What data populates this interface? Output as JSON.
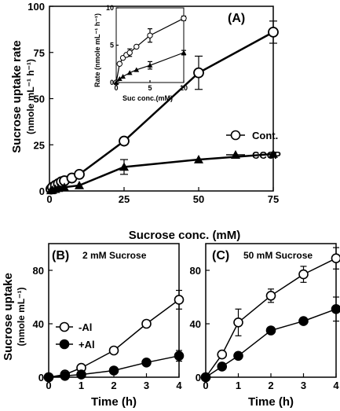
{
  "chart_data": [
    {
      "id": "A",
      "type": "line",
      "panel_label": "(A)",
      "xlabel": "Sucrose conc. (mM)",
      "ylabel": "Sucrose uptake rate",
      "ylabel_unit": "(nmole mL⁻¹ h⁻¹)",
      "xlim": [
        0,
        75
      ],
      "ylim": [
        0,
        100
      ],
      "xticks": [
        0,
        25,
        50,
        75
      ],
      "yticks": [
        0,
        25,
        50,
        75,
        100
      ],
      "legend_position": "right",
      "series": [
        {
          "name": "Cont.",
          "marker": "open-circle",
          "x": [
            0.5,
            1,
            2,
            3,
            4,
            5,
            7.5,
            10,
            25,
            50,
            75
          ],
          "y": [
            1.0,
            2.0,
            3.0,
            4.0,
            5.0,
            5.5,
            7.0,
            9.0,
            27.0,
            64.0,
            86.0
          ],
          "err": [
            0,
            0,
            0,
            0,
            0,
            0,
            0,
            0,
            0,
            9,
            6
          ]
        },
        {
          "name": "CCCP",
          "marker": "filled-triangle",
          "x": [
            0.5,
            1,
            2,
            3,
            5,
            10,
            25,
            50,
            75
          ],
          "y": [
            0.3,
            0.5,
            1.0,
            1.5,
            2.0,
            3.0,
            13.0,
            17.0,
            20.0
          ],
          "err": [
            0,
            0,
            0,
            0,
            0,
            0,
            4,
            0,
            0
          ]
        }
      ]
    },
    {
      "id": "A-inset",
      "type": "line",
      "xlabel": "Suc conc.(mM)",
      "ylabel": "Rate (nmole mL⁻¹ h⁻¹)",
      "xlim": [
        0,
        10
      ],
      "ylim": [
        0,
        10
      ],
      "xticks": [
        0,
        5,
        10
      ],
      "yticks": [
        0,
        5,
        10
      ],
      "series": [
        {
          "name": "Cont.",
          "marker": "open-circle",
          "x": [
            0,
            0.5,
            1,
            1.5,
            2,
            3,
            5,
            10
          ],
          "y": [
            0,
            2.5,
            3.3,
            3.7,
            4.0,
            4.8,
            6.3,
            8.6
          ],
          "err": [
            0,
            0,
            0,
            0,
            0.5,
            0,
            0.9,
            0.3
          ]
        },
        {
          "name": "CCCP",
          "marker": "filled-triangle",
          "x": [
            0,
            0.5,
            1,
            2,
            3,
            5,
            10
          ],
          "y": [
            0,
            0.5,
            0.8,
            1.3,
            1.7,
            2.3,
            4.0
          ],
          "err": [
            0,
            0,
            0,
            0,
            0,
            0.5,
            0.3
          ]
        }
      ]
    },
    {
      "id": "B",
      "type": "line",
      "panel_label": "(B)",
      "title": "2 mM Sucrose",
      "xlabel": "Time (h)",
      "ylabel": "Sucrose uptake",
      "ylabel_unit": "(nmole mL⁻¹)",
      "xlim": [
        0,
        4
      ],
      "ylim": [
        0,
        100
      ],
      "xticks": [
        0,
        1,
        2,
        3,
        4
      ],
      "yticks": [
        0,
        40,
        80
      ],
      "legend_position": "left",
      "series": [
        {
          "name": "-Al",
          "marker": "open-circle",
          "x": [
            0,
            0.5,
            1,
            2,
            3,
            4
          ],
          "y": [
            0,
            2,
            7,
            20,
            40,
            58
          ],
          "err": [
            0,
            0,
            0,
            0,
            0,
            7
          ]
        },
        {
          "name": "+Al",
          "marker": "filled-circle",
          "x": [
            0,
            0.5,
            1,
            2,
            3,
            4
          ],
          "y": [
            0,
            1,
            2,
            5,
            11,
            16
          ],
          "err": [
            0,
            0,
            0,
            0,
            0,
            4
          ]
        }
      ]
    },
    {
      "id": "C",
      "type": "line",
      "panel_label": "(C)",
      "title": "50 mM Sucrose",
      "xlabel": "Time (h)",
      "xlim": [
        0,
        4
      ],
      "ylim": [
        0,
        100
      ],
      "xticks": [
        0,
        1,
        2,
        3,
        4
      ],
      "yticks": [
        0,
        40,
        80
      ],
      "series": [
        {
          "name": "-Al",
          "marker": "open-circle",
          "x": [
            0,
            0.5,
            1,
            2,
            3,
            4
          ],
          "y": [
            0,
            17,
            41,
            61,
            77,
            89
          ],
          "err": [
            0,
            0,
            10,
            5,
            6,
            8
          ]
        },
        {
          "name": "+Al",
          "marker": "filled-circle",
          "x": [
            0,
            0.5,
            1,
            2,
            3,
            4
          ],
          "y": [
            0,
            8,
            16,
            35,
            42,
            51
          ],
          "err": [
            0,
            0,
            0,
            0,
            0,
            9
          ]
        }
      ]
    }
  ]
}
